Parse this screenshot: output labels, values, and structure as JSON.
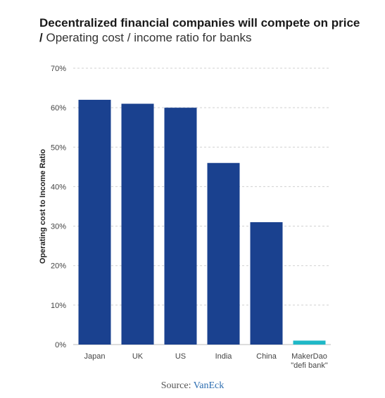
{
  "title": {
    "bold": "Decentralized financial companies will compete on price /",
    "normal": "Operating cost / income ratio for banks"
  },
  "source": {
    "label": "Source:",
    "link": "VanEck"
  },
  "colors": {
    "bar": "#1a418f",
    "highlight": "#1fb8c7",
    "grid": "#d0d0d0"
  },
  "chart_data": {
    "type": "bar",
    "categories": [
      "Japan",
      "UK",
      "US",
      "India",
      "China",
      "MakerDao \"defi bank\""
    ],
    "category_lines": [
      [
        "Japan"
      ],
      [
        "UK"
      ],
      [
        "US"
      ],
      [
        "India"
      ],
      [
        "China"
      ],
      [
        "MakerDao",
        "\"defi bank\""
      ]
    ],
    "values": [
      62,
      61,
      60,
      46,
      31,
      1
    ],
    "highlight_index": 5,
    "title": "",
    "xlabel": "",
    "ylabel": "Operating cost to Income Ratio",
    "ylim": [
      0,
      70
    ],
    "yticks": [
      0,
      10,
      20,
      30,
      40,
      50,
      60,
      70
    ],
    "ytick_labels": [
      "0%",
      "10%",
      "20%",
      "30%",
      "40%",
      "50%",
      "60%",
      "70%"
    ],
    "grid": true,
    "legend": "none"
  }
}
